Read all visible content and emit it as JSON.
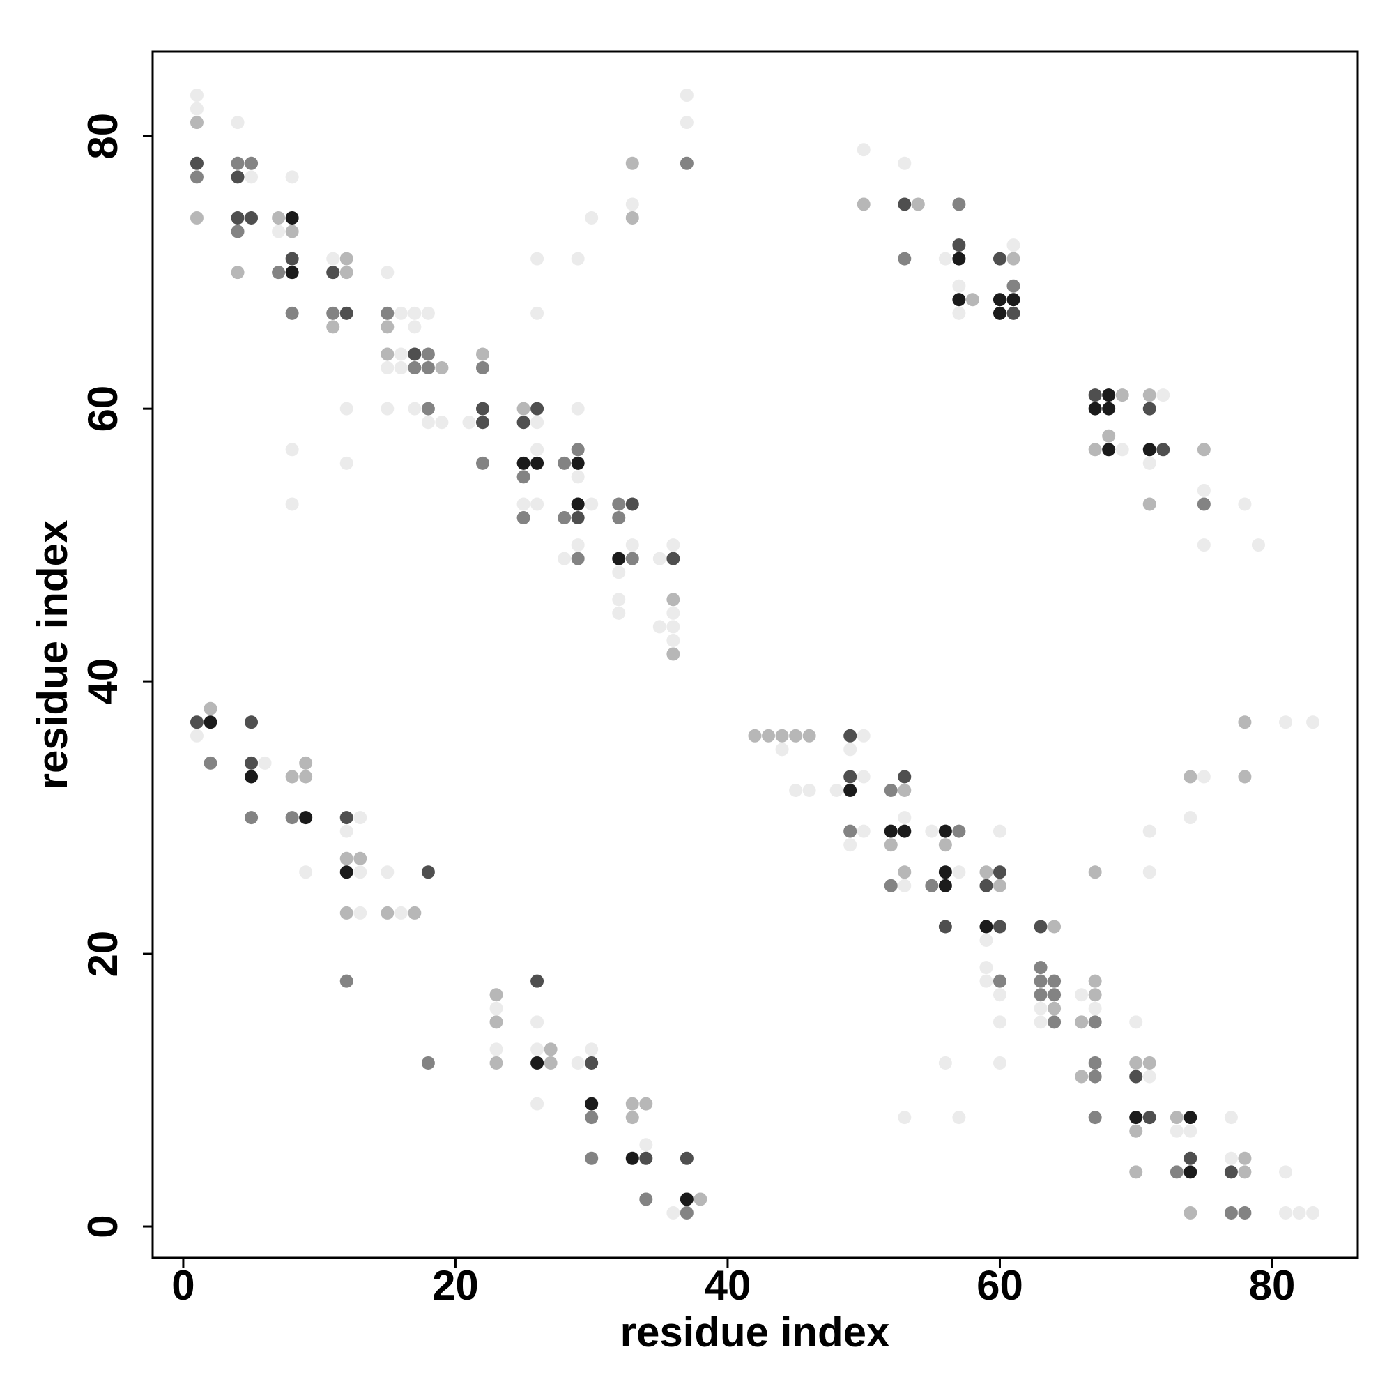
{
  "chart_data": {
    "type": "scatter",
    "x_label": "residue index",
    "y_label": "residue index",
    "xlim": [
      -2.25,
      86.3
    ],
    "ylim": [
      -2.3,
      86.2
    ],
    "xticks": [
      0,
      20,
      40,
      60,
      80
    ],
    "yticks": [
      0,
      20,
      40,
      60,
      80
    ],
    "x": [
      1,
      1,
      1,
      1,
      1,
      1,
      4,
      4,
      5,
      4,
      5,
      4,
      5,
      4,
      4,
      7,
      8,
      7,
      8,
      8,
      7,
      8,
      8,
      8,
      8,
      8,
      11,
      12,
      11,
      12,
      11,
      12,
      11,
      12,
      12,
      15,
      15,
      16,
      17,
      18,
      15,
      17,
      15,
      16,
      17,
      18,
      15,
      16,
      17,
      18,
      19,
      15,
      17,
      18,
      18,
      19,
      22,
      22,
      21,
      22,
      22,
      22,
      25,
      26,
      25,
      26,
      26,
      26,
      26,
      25,
      26,
      25,
      25,
      26,
      25,
      28,
      29,
      29,
      29,
      29,
      29,
      29,
      30,
      28,
      29,
      29,
      28,
      29,
      30,
      32,
      33,
      32,
      32,
      33,
      33,
      32,
      32,
      32,
      33,
      33,
      33,
      35,
      36,
      36,
      36,
      36,
      36,
      35,
      36,
      36,
      37,
      37,
      37,
      50,
      50,
      53,
      53,
      54,
      53,
      57,
      57,
      56,
      57,
      57,
      57,
      58,
      57,
      60,
      61,
      61,
      61,
      60,
      61,
      60,
      61,
      67,
      68,
      69,
      67,
      68,
      68,
      67,
      68,
      69,
      71,
      72,
      71,
      71,
      72,
      71,
      71,
      75,
      75,
      75,
      75,
      78,
      79,
      1,
      2,
      2,
      1,
      2,
      5,
      5,
      6,
      5,
      5,
      8,
      9,
      9,
      8,
      9,
      9,
      12,
      13,
      12,
      12,
      13,
      12,
      13,
      12,
      13,
      12,
      15,
      15,
      16,
      17,
      18,
      18,
      23,
      23,
      23,
      23,
      23,
      26,
      26,
      26,
      27,
      26,
      27,
      26,
      29,
      30,
      30,
      30,
      30,
      30,
      33,
      34,
      33,
      34,
      33,
      34,
      34,
      37,
      36,
      37,
      38,
      37,
      42,
      43,
      44,
      45,
      46,
      44,
      45,
      46,
      49,
      50,
      49,
      49,
      50,
      48,
      49,
      49,
      50,
      49,
      52,
      53,
      53,
      53,
      52,
      53,
      52,
      53,
      52,
      53,
      55,
      56,
      57,
      56,
      56,
      57,
      55,
      56,
      56,
      56,
      53,
      57,
      59,
      60,
      59,
      60,
      60,
      59,
      60,
      59,
      59,
      59,
      60,
      60,
      60,
      60,
      63,
      64,
      63,
      63,
      64,
      63,
      64,
      63,
      64,
      63,
      64,
      66,
      67,
      67,
      67,
      66,
      67,
      67,
      67,
      66,
      67,
      67,
      70,
      70,
      71,
      70,
      71,
      70,
      71,
      70,
      70,
      71,
      71,
      73,
      74,
      73,
      74,
      74,
      73,
      74,
      74,
      74,
      75,
      74,
      77,
      77,
      78,
      77,
      78,
      77,
      78,
      81,
      81,
      82,
      83,
      78,
      81,
      83,
      78
    ],
    "y": [
      83,
      82,
      81,
      78,
      77,
      74,
      81,
      78,
      78,
      77,
      77,
      74,
      74,
      73,
      70,
      74,
      74,
      73,
      73,
      71,
      70,
      70,
      77,
      67,
      57,
      53,
      71,
      71,
      70,
      70,
      67,
      67,
      66,
      60,
      56,
      70,
      67,
      67,
      67,
      67,
      66,
      66,
      64,
      64,
      64,
      64,
      63,
      63,
      63,
      63,
      63,
      60,
      60,
      60,
      59,
      59,
      64,
      63,
      59,
      60,
      59,
      56,
      60,
      60,
      59,
      59,
      71,
      67,
      57,
      56,
      56,
      55,
      53,
      53,
      52,
      56,
      56,
      57,
      55,
      60,
      71,
      53,
      53,
      52,
      52,
      50,
      49,
      49,
      74,
      53,
      53,
      52,
      49,
      49,
      50,
      48,
      46,
      45,
      78,
      75,
      74,
      49,
      49,
      50,
      46,
      45,
      44,
      44,
      43,
      42,
      83,
      81,
      78,
      79,
      75,
      78,
      75,
      75,
      71,
      75,
      72,
      71,
      71,
      69,
      68,
      68,
      67,
      71,
      72,
      71,
      69,
      68,
      68,
      67,
      67,
      61,
      61,
      61,
      60,
      60,
      58,
      57,
      57,
      57,
      61,
      61,
      60,
      57,
      57,
      56,
      53,
      57,
      54,
      53,
      50,
      53,
      50,
      37,
      37,
      38,
      36,
      34,
      37,
      34,
      34,
      33,
      30,
      33,
      33,
      34,
      30,
      30,
      26,
      30,
      30,
      29,
      27,
      27,
      26,
      26,
      23,
      23,
      18,
      26,
      23,
      23,
      23,
      26,
      12,
      17,
      16,
      15,
      13,
      12,
      18,
      15,
      13,
      13,
      12,
      12,
      9,
      12,
      13,
      12,
      9,
      8,
      5,
      9,
      9,
      8,
      6,
      5,
      5,
      2,
      5,
      1,
      2,
      2,
      1,
      36,
      36,
      36,
      36,
      36,
      35,
      32,
      32,
      36,
      36,
      35,
      33,
      33,
      32,
      32,
      29,
      29,
      28,
      32,
      33,
      32,
      30,
      29,
      29,
      28,
      26,
      25,
      25,
      29,
      29,
      29,
      28,
      26,
      26,
      25,
      25,
      22,
      12,
      8,
      8,
      26,
      26,
      25,
      25,
      29,
      22,
      22,
      21,
      19,
      18,
      18,
      17,
      15,
      12,
      22,
      22,
      19,
      18,
      18,
      17,
      17,
      16,
      16,
      15,
      15,
      17,
      17,
      18,
      16,
      15,
      15,
      26,
      12,
      11,
      11,
      8,
      15,
      12,
      12,
      11,
      11,
      8,
      8,
      7,
      4,
      29,
      26,
      8,
      8,
      7,
      7,
      5,
      4,
      4,
      1,
      33,
      33,
      30,
      8,
      5,
      5,
      4,
      4,
      1,
      1,
      4,
      1,
      1,
      1,
      37,
      37,
      37,
      33
    ],
    "shades": [
      1,
      1,
      2,
      4,
      3,
      2,
      1,
      3,
      3,
      4,
      1,
      4,
      4,
      3,
      2,
      2,
      5,
      1,
      2,
      4,
      3,
      5,
      1,
      3,
      1,
      1,
      1,
      2,
      4,
      2,
      3,
      4,
      2,
      1,
      1,
      1,
      3,
      1,
      1,
      1,
      2,
      1,
      2,
      1,
      4,
      3,
      1,
      1,
      3,
      3,
      2,
      1,
      1,
      3,
      1,
      1,
      2,
      3,
      1,
      4,
      4,
      3,
      2,
      4,
      4,
      1,
      1,
      1,
      1,
      5,
      5,
      3,
      1,
      1,
      3,
      3,
      5,
      3,
      1,
      1,
      1,
      5,
      1,
      3,
      4,
      1,
      1,
      3,
      1,
      3,
      4,
      3,
      5,
      3,
      1,
      1,
      1,
      1,
      2,
      1,
      2,
      1,
      4,
      1,
      2,
      1,
      1,
      1,
      1,
      2,
      1,
      1,
      3,
      1,
      2,
      1,
      4,
      2,
      3,
      3,
      4,
      1,
      5,
      1,
      5,
      2,
      1,
      4,
      1,
      2,
      3,
      5,
      5,
      5,
      4,
      4,
      5,
      2,
      5,
      5,
      2,
      2,
      5,
      1,
      2,
      1,
      4,
      5,
      4,
      1,
      2,
      2,
      1,
      3,
      1,
      1,
      1,
      4,
      5,
      2,
      1,
      3,
      4,
      4,
      1,
      5,
      3,
      2,
      2,
      2,
      3,
      5,
      1,
      4,
      1,
      1,
      2,
      2,
      5,
      1,
      2,
      1,
      3,
      1,
      2,
      1,
      2,
      4,
      3,
      2,
      1,
      2,
      1,
      2,
      4,
      1,
      1,
      2,
      5,
      2,
      1,
      1,
      1,
      4,
      5,
      3,
      3,
      2,
      2,
      2,
      1,
      5,
      4,
      3,
      4,
      1,
      5,
      2,
      3,
      2,
      2,
      2,
      2,
      2,
      1,
      1,
      1,
      4,
      1,
      1,
      4,
      1,
      1,
      5,
      3,
      1,
      1,
      3,
      4,
      2,
      1,
      5,
      5,
      2,
      2,
      3,
      1,
      1,
      5,
      3,
      2,
      5,
      1,
      3,
      5,
      4,
      1,
      1,
      1,
      2,
      4,
      4,
      2,
      1,
      5,
      4,
      1,
      1,
      1,
      3,
      1,
      1,
      1,
      4,
      2,
      3,
      3,
      3,
      3,
      3,
      1,
      2,
      1,
      3,
      1,
      2,
      2,
      1,
      2,
      3,
      2,
      3,
      2,
      3,
      3,
      1,
      2,
      2,
      4,
      1,
      5,
      4,
      2,
      2,
      1,
      1,
      2,
      5,
      1,
      1,
      4,
      3,
      5,
      2,
      2,
      1,
      1,
      1,
      1,
      2,
      4,
      2,
      3,
      3,
      1,
      1,
      1,
      1,
      2,
      1,
      1,
      2
    ]
  }
}
